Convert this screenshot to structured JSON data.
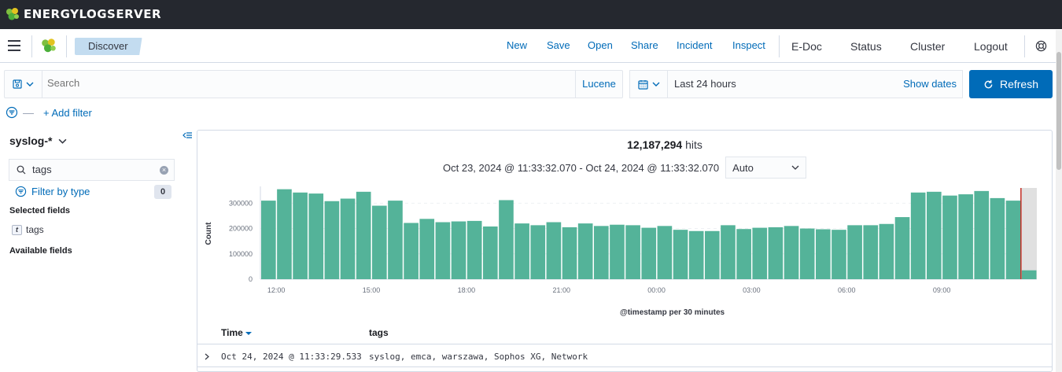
{
  "brand": {
    "name": "ENERGYLOGSERVER"
  },
  "header": {
    "breadcrumb": "Discover",
    "menu_links": [
      "New",
      "Save",
      "Open",
      "Share",
      "Incident",
      "Inspect"
    ],
    "menu_items": [
      "E-Doc",
      "Status",
      "Cluster",
      "Logout"
    ]
  },
  "query": {
    "placeholder": "Search",
    "language": "Lucene"
  },
  "time": {
    "label": "Last 24 hours",
    "show_dates": "Show dates",
    "refresh": "Refresh"
  },
  "filters": {
    "add_label": "+ Add filter"
  },
  "sidebar": {
    "index_pattern": "syslog-*",
    "field_search_value": "tags",
    "filter_by_type": "Filter by type",
    "filter_count": "0",
    "selected_title": "Selected fields",
    "selected_fields": [
      {
        "type": "t",
        "name": "tags"
      }
    ],
    "available_title": "Available fields"
  },
  "results": {
    "hits_count": "12,187,294",
    "hits_label": "hits",
    "range": "Oct 23, 2024 @ 11:33:32.070 - Oct 24, 2024 @ 11:33:32.070",
    "interval": "Auto"
  },
  "chart_data": {
    "type": "bar",
    "xlabel": "@timestamp per 30 minutes",
    "ylabel": "Count",
    "ylim": [
      0,
      360000
    ],
    "yticks": [
      0,
      100000,
      200000,
      300000
    ],
    "x_ticks": [
      "12:00",
      "15:00",
      "18:00",
      "21:00",
      "00:00",
      "03:00",
      "06:00",
      "09:00"
    ],
    "values": [
      310000,
      355000,
      342000,
      338000,
      308000,
      318000,
      345000,
      290000,
      310000,
      222000,
      238000,
      225000,
      228000,
      230000,
      208000,
      312000,
      220000,
      213000,
      225000,
      205000,
      220000,
      210000,
      215000,
      213000,
      203000,
      210000,
      195000,
      190000,
      190000,
      213000,
      198000,
      203000,
      205000,
      210000,
      200000,
      197000,
      195000,
      213000,
      213000,
      218000,
      245000,
      342000,
      345000,
      330000,
      335000,
      348000,
      320000,
      310000,
      35000
    ],
    "bar_color": "#54b399",
    "partial_bucket_color": "#e0e0e0",
    "now_line_color": "#bd271e"
  },
  "table": {
    "columns": [
      "Time",
      "tags"
    ],
    "rows": [
      {
        "time": "Oct 24, 2024 @ 11:33:29.533",
        "tags": "syslog, emca, warszawa, Sophos XG, Network"
      }
    ]
  }
}
